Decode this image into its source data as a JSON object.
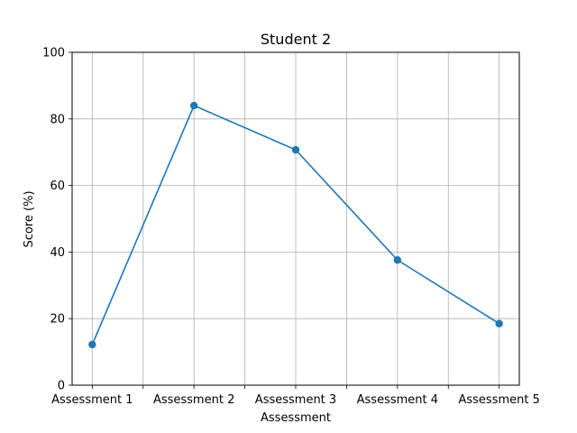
{
  "chart_data": {
    "type": "line",
    "title": "Student 2",
    "xlabel": "Assessment",
    "ylabel": "Score (%)",
    "categories": [
      "Assessment 1",
      "Assessment 2",
      "Assessment 3",
      "Assessment 4",
      "Assessment 5"
    ],
    "series": [
      {
        "values": [
          12.2,
          84.0,
          70.7,
          37.6,
          18.5
        ],
        "color": "#1f77b4",
        "marker": "circle"
      }
    ],
    "ylim": [
      0,
      100
    ],
    "yticks": [
      0,
      20,
      40,
      60,
      80,
      100
    ],
    "grid": true,
    "legend": "none"
  }
}
